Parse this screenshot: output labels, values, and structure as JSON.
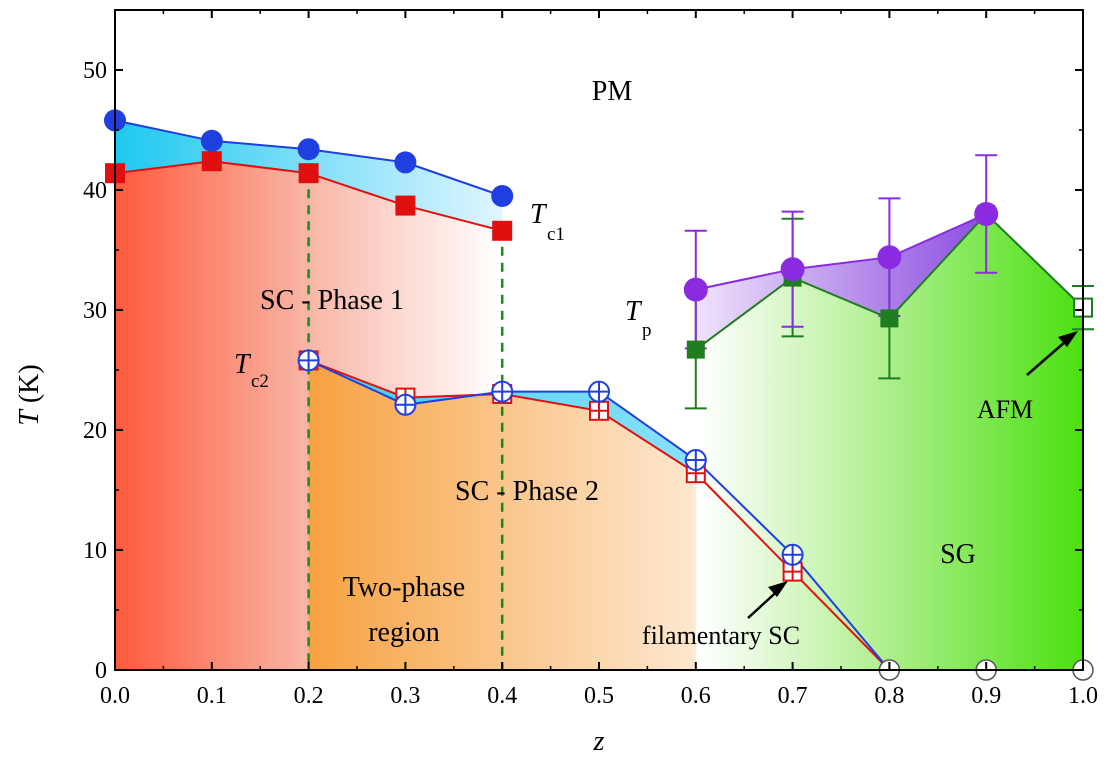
{
  "chart_data": {
    "type": "line",
    "xlabel": "z",
    "ylabel_symbol": "T",
    "ylabel_unit": "(K)",
    "xlim": [
      0.0,
      1.0
    ],
    "ylim": [
      0,
      55
    ],
    "x_ticks": [
      "0.0",
      "0.1",
      "0.2",
      "0.3",
      "0.4",
      "0.5",
      "0.6",
      "0.7",
      "0.8",
      "0.9",
      "1.0"
    ],
    "y_ticks": [
      "0",
      "10",
      "20",
      "30",
      "40",
      "50"
    ],
    "grid": false,
    "series": [
      {
        "name": "Tc1 (blue circles)",
        "color": "#1f3fe0",
        "x": [
          0.0,
          0.1,
          0.2,
          0.3,
          0.4
        ],
        "y": [
          45.8,
          44.1,
          43.4,
          42.3,
          39.5
        ]
      },
      {
        "name": "Tc1 (red squares)",
        "color": "#e01010",
        "x": [
          0.0,
          0.1,
          0.2,
          0.3,
          0.4
        ],
        "y": [
          41.4,
          42.4,
          41.4,
          38.7,
          36.6
        ]
      },
      {
        "name": "Tc2 (blue open circles)",
        "color": "#1f3fe0",
        "x": [
          0.2,
          0.3,
          0.4,
          0.5,
          0.6,
          0.7
        ],
        "y": [
          25.8,
          22.1,
          23.2,
          23.2,
          17.5,
          9.6
        ]
      },
      {
        "name": "Tc2 (red open squares)",
        "color": "#e01010",
        "x": [
          0.2,
          0.3,
          0.4,
          0.5,
          0.6,
          0.7
        ],
        "y": [
          25.8,
          22.7,
          23.0,
          21.6,
          16.4,
          8.2
        ]
      },
      {
        "name": "Tp (purple circles)",
        "color": "#8a2be2",
        "x": [
          0.6,
          0.7,
          0.8,
          0.9
        ],
        "y": [
          31.7,
          33.4,
          34.4,
          38.0
        ],
        "err": [
          4.9,
          4.8,
          4.9,
          4.9
        ]
      },
      {
        "name": "Green squares",
        "color": "#1e7d1e",
        "x": [
          0.6,
          0.7,
          0.8,
          0.9,
          1.0
        ],
        "y": [
          26.7,
          32.7,
          29.3,
          38.0,
          30.2
        ],
        "err": [
          4.9,
          4.9,
          5.0,
          0,
          1.8
        ]
      },
      {
        "name": "Zero points (open circles)",
        "color": "#555555",
        "x": [
          0.8,
          0.9,
          1.0
        ],
        "y": [
          0,
          0,
          0
        ]
      }
    ],
    "region_labels": {
      "pm": "PM",
      "sc1": "SC - Phase 1",
      "sc2": "SC - Phase 2",
      "two_phase_line1": "Two-phase",
      "two_phase_line2": "region",
      "sg": "SG",
      "afm": "AFM",
      "filamentary": "filamentary SC"
    },
    "symbols": {
      "tc1_main": "T",
      "tc1_sub": "c1",
      "tc2_main": "T",
      "tc2_sub": "c2",
      "tp_main": "T",
      "tp_sub": "p"
    },
    "colors": {
      "sc1_region": "#ff5a3c",
      "sc2_region": "#f7a140",
      "gap_region": "#1ec8f0",
      "sg_region": "#5ee01a",
      "tp_region": "#9d5fe8",
      "dashed_lines": "#1a8a1a"
    }
  }
}
